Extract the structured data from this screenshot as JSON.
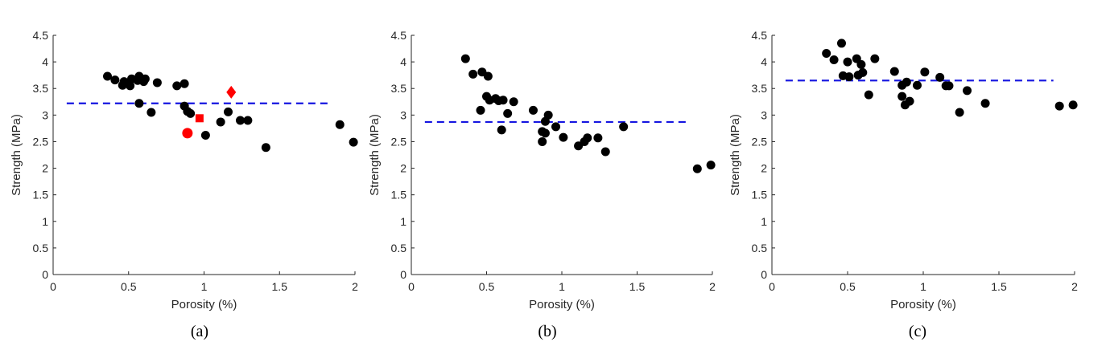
{
  "chart_data": [
    {
      "type": "scatter",
      "caption": "(a)",
      "xlabel": "Porosity (%)",
      "ylabel": "Strength (MPa)",
      "xlim": [
        0,
        2
      ],
      "ylim": [
        0,
        4.5
      ],
      "xticks": [
        0,
        0.5,
        1,
        1.5,
        2
      ],
      "xtick_labels": [
        "0",
        "0.5",
        "1",
        "1.5",
        "2"
      ],
      "yticks": [
        0,
        0.5,
        1,
        1.5,
        2,
        2.5,
        3,
        3.5,
        4,
        4.5
      ],
      "ytick_labels": [
        "0",
        "0.5",
        "1",
        "1.5",
        "2",
        "2.5",
        "3",
        "3.5",
        "4",
        "4.5"
      ],
      "grid": false,
      "reference_line": {
        "y": 3.22,
        "x_range": [
          0.09,
          1.84
        ],
        "style": "dashed",
        "color": "#1515e0"
      },
      "points": [
        {
          "x": 0.36,
          "y": 3.73,
          "marker": "circle",
          "color": "#000000"
        },
        {
          "x": 0.41,
          "y": 3.66,
          "marker": "circle",
          "color": "#000000"
        },
        {
          "x": 0.46,
          "y": 3.56,
          "marker": "circle",
          "color": "#000000"
        },
        {
          "x": 0.47,
          "y": 3.63,
          "marker": "circle",
          "color": "#000000"
        },
        {
          "x": 0.51,
          "y": 3.55,
          "marker": "circle",
          "color": "#000000"
        },
        {
          "x": 0.52,
          "y": 3.68,
          "marker": "circle",
          "color": "#000000"
        },
        {
          "x": 0.56,
          "y": 3.65,
          "marker": "circle",
          "color": "#000000"
        },
        {
          "x": 0.57,
          "y": 3.73,
          "marker": "circle",
          "color": "#000000"
        },
        {
          "x": 0.6,
          "y": 3.63,
          "marker": "circle",
          "color": "#000000"
        },
        {
          "x": 0.61,
          "y": 3.68,
          "marker": "circle",
          "color": "#000000"
        },
        {
          "x": 0.57,
          "y": 3.22,
          "marker": "circle",
          "color": "#000000"
        },
        {
          "x": 0.65,
          "y": 3.05,
          "marker": "circle",
          "color": "#000000"
        },
        {
          "x": 0.69,
          "y": 3.61,
          "marker": "circle",
          "color": "#000000"
        },
        {
          "x": 0.82,
          "y": 3.55,
          "marker": "circle",
          "color": "#000000"
        },
        {
          "x": 0.87,
          "y": 3.59,
          "marker": "circle",
          "color": "#000000"
        },
        {
          "x": 0.87,
          "y": 3.17,
          "marker": "circle",
          "color": "#000000"
        },
        {
          "x": 0.89,
          "y": 3.07,
          "marker": "circle",
          "color": "#000000"
        },
        {
          "x": 0.91,
          "y": 3.03,
          "marker": "circle",
          "color": "#000000"
        },
        {
          "x": 1.01,
          "y": 2.62,
          "marker": "circle",
          "color": "#000000"
        },
        {
          "x": 1.11,
          "y": 2.87,
          "marker": "circle",
          "color": "#000000"
        },
        {
          "x": 1.16,
          "y": 3.06,
          "marker": "circle",
          "color": "#000000"
        },
        {
          "x": 1.24,
          "y": 2.9,
          "marker": "circle",
          "color": "#000000"
        },
        {
          "x": 1.29,
          "y": 2.9,
          "marker": "circle",
          "color": "#000000"
        },
        {
          "x": 1.41,
          "y": 2.39,
          "marker": "circle",
          "color": "#000000"
        },
        {
          "x": 1.9,
          "y": 2.82,
          "marker": "circle",
          "color": "#000000"
        },
        {
          "x": 1.99,
          "y": 2.49,
          "marker": "circle",
          "color": "#000000"
        },
        {
          "x": 0.89,
          "y": 2.66,
          "marker": "circle",
          "color": "#ff0000"
        },
        {
          "x": 0.97,
          "y": 2.94,
          "marker": "square",
          "color": "#ff0000"
        },
        {
          "x": 1.18,
          "y": 3.43,
          "marker": "diamond",
          "color": "#ff0000"
        }
      ]
    },
    {
      "type": "scatter",
      "caption": "(b)",
      "xlabel": "Porosity (%)",
      "ylabel": "Strength (MPa)",
      "xlim": [
        0,
        2
      ],
      "ylim": [
        0,
        4.5
      ],
      "xticks": [
        0,
        0.5,
        1,
        1.5,
        2
      ],
      "xtick_labels": [
        "0",
        "0.5",
        "1",
        "1.5",
        "2"
      ],
      "yticks": [
        0,
        0.5,
        1,
        1.5,
        2,
        2.5,
        3,
        3.5,
        4,
        4.5
      ],
      "ytick_labels": [
        "0",
        "0.5",
        "1",
        "1.5",
        "2",
        "2.5",
        "3",
        "3.5",
        "4",
        "4.5"
      ],
      "grid": false,
      "reference_line": {
        "y": 2.87,
        "x_range": [
          0.09,
          1.84
        ],
        "style": "dashed",
        "color": "#1515e0"
      },
      "points": [
        {
          "x": 0.36,
          "y": 4.06,
          "marker": "circle",
          "color": "#000000"
        },
        {
          "x": 0.41,
          "y": 3.77,
          "marker": "circle",
          "color": "#000000"
        },
        {
          "x": 0.47,
          "y": 3.81,
          "marker": "circle",
          "color": "#000000"
        },
        {
          "x": 0.51,
          "y": 3.73,
          "marker": "circle",
          "color": "#000000"
        },
        {
          "x": 0.5,
          "y": 3.35,
          "marker": "circle",
          "color": "#000000"
        },
        {
          "x": 0.52,
          "y": 3.28,
          "marker": "circle",
          "color": "#000000"
        },
        {
          "x": 0.56,
          "y": 3.31,
          "marker": "circle",
          "color": "#000000"
        },
        {
          "x": 0.58,
          "y": 3.27,
          "marker": "circle",
          "color": "#000000"
        },
        {
          "x": 0.61,
          "y": 3.28,
          "marker": "circle",
          "color": "#000000"
        },
        {
          "x": 0.46,
          "y": 3.09,
          "marker": "circle",
          "color": "#000000"
        },
        {
          "x": 0.6,
          "y": 2.72,
          "marker": "circle",
          "color": "#000000"
        },
        {
          "x": 0.64,
          "y": 3.03,
          "marker": "circle",
          "color": "#000000"
        },
        {
          "x": 0.68,
          "y": 3.25,
          "marker": "circle",
          "color": "#000000"
        },
        {
          "x": 0.81,
          "y": 3.09,
          "marker": "circle",
          "color": "#000000"
        },
        {
          "x": 0.87,
          "y": 2.69,
          "marker": "circle",
          "color": "#000000"
        },
        {
          "x": 0.87,
          "y": 2.5,
          "marker": "circle",
          "color": "#000000"
        },
        {
          "x": 0.89,
          "y": 2.66,
          "marker": "circle",
          "color": "#000000"
        },
        {
          "x": 0.89,
          "y": 2.88,
          "marker": "circle",
          "color": "#000000"
        },
        {
          "x": 0.91,
          "y": 3.0,
          "marker": "circle",
          "color": "#000000"
        },
        {
          "x": 0.96,
          "y": 2.78,
          "marker": "circle",
          "color": "#000000"
        },
        {
          "x": 1.01,
          "y": 2.58,
          "marker": "circle",
          "color": "#000000"
        },
        {
          "x": 1.11,
          "y": 2.42,
          "marker": "circle",
          "color": "#000000"
        },
        {
          "x": 1.15,
          "y": 2.5,
          "marker": "circle",
          "color": "#000000"
        },
        {
          "x": 1.17,
          "y": 2.57,
          "marker": "circle",
          "color": "#000000"
        },
        {
          "x": 1.24,
          "y": 2.57,
          "marker": "circle",
          "color": "#000000"
        },
        {
          "x": 1.29,
          "y": 2.31,
          "marker": "circle",
          "color": "#000000"
        },
        {
          "x": 1.41,
          "y": 2.78,
          "marker": "circle",
          "color": "#000000"
        },
        {
          "x": 1.9,
          "y": 1.99,
          "marker": "circle",
          "color": "#000000"
        },
        {
          "x": 1.99,
          "y": 2.06,
          "marker": "circle",
          "color": "#000000"
        }
      ]
    },
    {
      "type": "scatter",
      "caption": "(c)",
      "xlabel": "Porosity (%)",
      "ylabel": "Strength (MPa)",
      "xlim": [
        0,
        2
      ],
      "ylim": [
        0,
        4.5
      ],
      "xticks": [
        0,
        0.5,
        1,
        1.5,
        2
      ],
      "xtick_labels": [
        "0",
        "0.5",
        "1",
        "1.5",
        "2"
      ],
      "yticks": [
        0,
        0.5,
        1,
        1.5,
        2,
        2.5,
        3,
        3.5,
        4,
        4.5
      ],
      "ytick_labels": [
        "0",
        "0.5",
        "1",
        "1.5",
        "2",
        "2.5",
        "3",
        "3.5",
        "4",
        "4.5"
      ],
      "grid": false,
      "reference_line": {
        "y": 3.65,
        "x_range": [
          0.09,
          1.86
        ],
        "style": "dashed",
        "color": "#1515e0"
      },
      "points": [
        {
          "x": 0.36,
          "y": 4.16,
          "marker": "circle",
          "color": "#000000"
        },
        {
          "x": 0.41,
          "y": 4.04,
          "marker": "circle",
          "color": "#000000"
        },
        {
          "x": 0.46,
          "y": 4.35,
          "marker": "circle",
          "color": "#000000"
        },
        {
          "x": 0.47,
          "y": 3.74,
          "marker": "circle",
          "color": "#000000"
        },
        {
          "x": 0.5,
          "y": 4.0,
          "marker": "circle",
          "color": "#000000"
        },
        {
          "x": 0.51,
          "y": 3.72,
          "marker": "circle",
          "color": "#000000"
        },
        {
          "x": 0.56,
          "y": 4.06,
          "marker": "circle",
          "color": "#000000"
        },
        {
          "x": 0.57,
          "y": 3.75,
          "marker": "circle",
          "color": "#000000"
        },
        {
          "x": 0.59,
          "y": 3.95,
          "marker": "circle",
          "color": "#000000"
        },
        {
          "x": 0.6,
          "y": 3.8,
          "marker": "circle",
          "color": "#000000"
        },
        {
          "x": 0.64,
          "y": 3.38,
          "marker": "circle",
          "color": "#000000"
        },
        {
          "x": 0.68,
          "y": 4.06,
          "marker": "circle",
          "color": "#000000"
        },
        {
          "x": 0.81,
          "y": 3.82,
          "marker": "circle",
          "color": "#000000"
        },
        {
          "x": 0.86,
          "y": 3.56,
          "marker": "circle",
          "color": "#000000"
        },
        {
          "x": 0.86,
          "y": 3.35,
          "marker": "circle",
          "color": "#000000"
        },
        {
          "x": 0.88,
          "y": 3.19,
          "marker": "circle",
          "color": "#000000"
        },
        {
          "x": 0.89,
          "y": 3.62,
          "marker": "circle",
          "color": "#000000"
        },
        {
          "x": 0.91,
          "y": 3.26,
          "marker": "circle",
          "color": "#000000"
        },
        {
          "x": 0.96,
          "y": 3.56,
          "marker": "circle",
          "color": "#000000"
        },
        {
          "x": 1.01,
          "y": 3.81,
          "marker": "circle",
          "color": "#000000"
        },
        {
          "x": 1.11,
          "y": 3.71,
          "marker": "circle",
          "color": "#000000"
        },
        {
          "x": 1.15,
          "y": 3.55,
          "marker": "circle",
          "color": "#000000"
        },
        {
          "x": 1.17,
          "y": 3.55,
          "marker": "circle",
          "color": "#000000"
        },
        {
          "x": 1.24,
          "y": 3.05,
          "marker": "circle",
          "color": "#000000"
        },
        {
          "x": 1.29,
          "y": 3.46,
          "marker": "circle",
          "color": "#000000"
        },
        {
          "x": 1.41,
          "y": 3.22,
          "marker": "circle",
          "color": "#000000"
        },
        {
          "x": 1.9,
          "y": 3.17,
          "marker": "circle",
          "color": "#000000"
        },
        {
          "x": 1.99,
          "y": 3.19,
          "marker": "circle",
          "color": "#000000"
        }
      ]
    }
  ]
}
